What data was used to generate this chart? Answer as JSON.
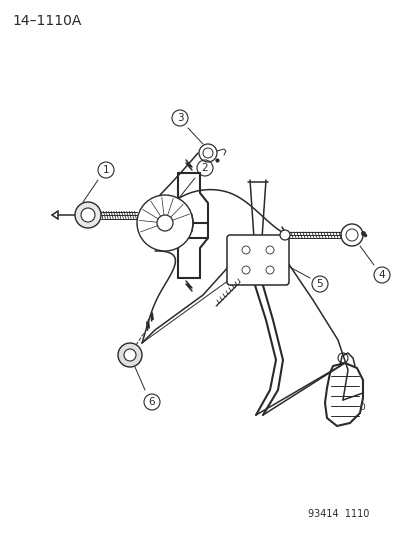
{
  "title": "14–1110A",
  "footer": "93414  1110",
  "bg_color": "#ffffff",
  "line_color": "#2a2a2a",
  "title_fontsize": 10,
  "footer_fontsize": 7,
  "fig_width": 4.14,
  "fig_height": 5.33,
  "dpi": 100,
  "label_fontsize": 7.5,
  "label_circle_r": 8,
  "lw_main": 1.1,
  "lw_thin": 0.7,
  "lw_thick": 1.5
}
